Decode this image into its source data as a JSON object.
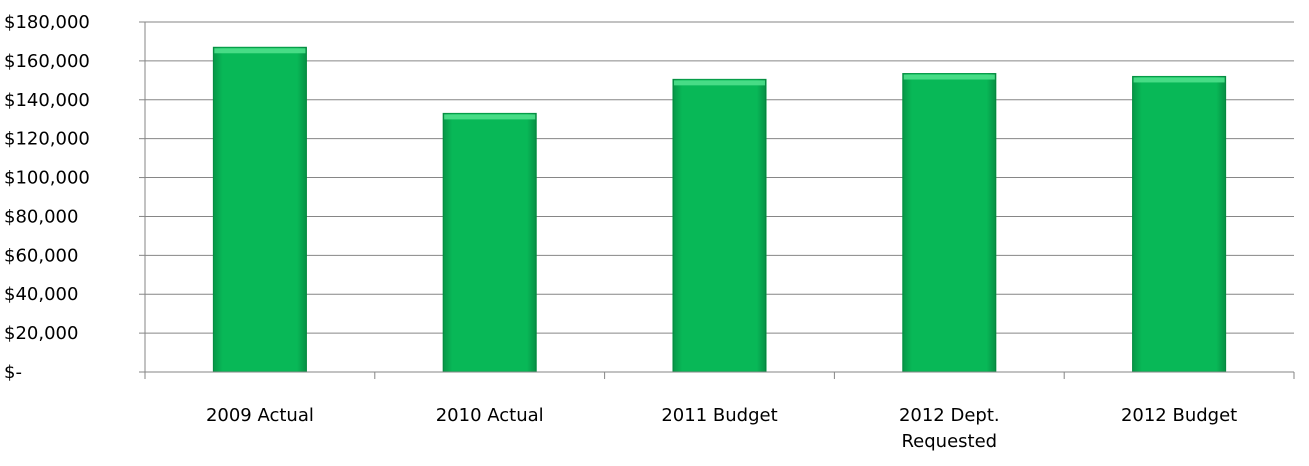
{
  "chart_data": {
    "type": "bar",
    "title": "",
    "xlabel": "",
    "ylabel": "",
    "categories": [
      "2009 Actual",
      "2010 Actual",
      "2011 Budget",
      "2012 Dept. Requested",
      "2012 Budget"
    ],
    "category_lines": [
      [
        "2009 Actual"
      ],
      [
        "2010 Actual"
      ],
      [
        "2011 Budget"
      ],
      [
        "2012 Dept.",
        "Requested"
      ],
      [
        "2012 Budget"
      ]
    ],
    "values": [
      167000,
      133000,
      150500,
      153500,
      152000
    ],
    "ylim": [
      0,
      180000
    ],
    "yticks": [
      0,
      20000,
      40000,
      60000,
      80000,
      100000,
      120000,
      140000,
      160000,
      180000
    ],
    "ytick_labels": [
      "$-",
      "$20,000",
      "$40,000",
      "$60,000",
      "$80,000",
      "$100,000",
      "$120,000",
      "$140,000",
      "$160,000",
      "$180,000"
    ],
    "grid": true,
    "legend": "none",
    "colors": {
      "bar": "#08b857",
      "bar_top": "#4fe08c",
      "bar_edge": "#069a47",
      "grid": "#868686",
      "axis": "#868686"
    }
  }
}
